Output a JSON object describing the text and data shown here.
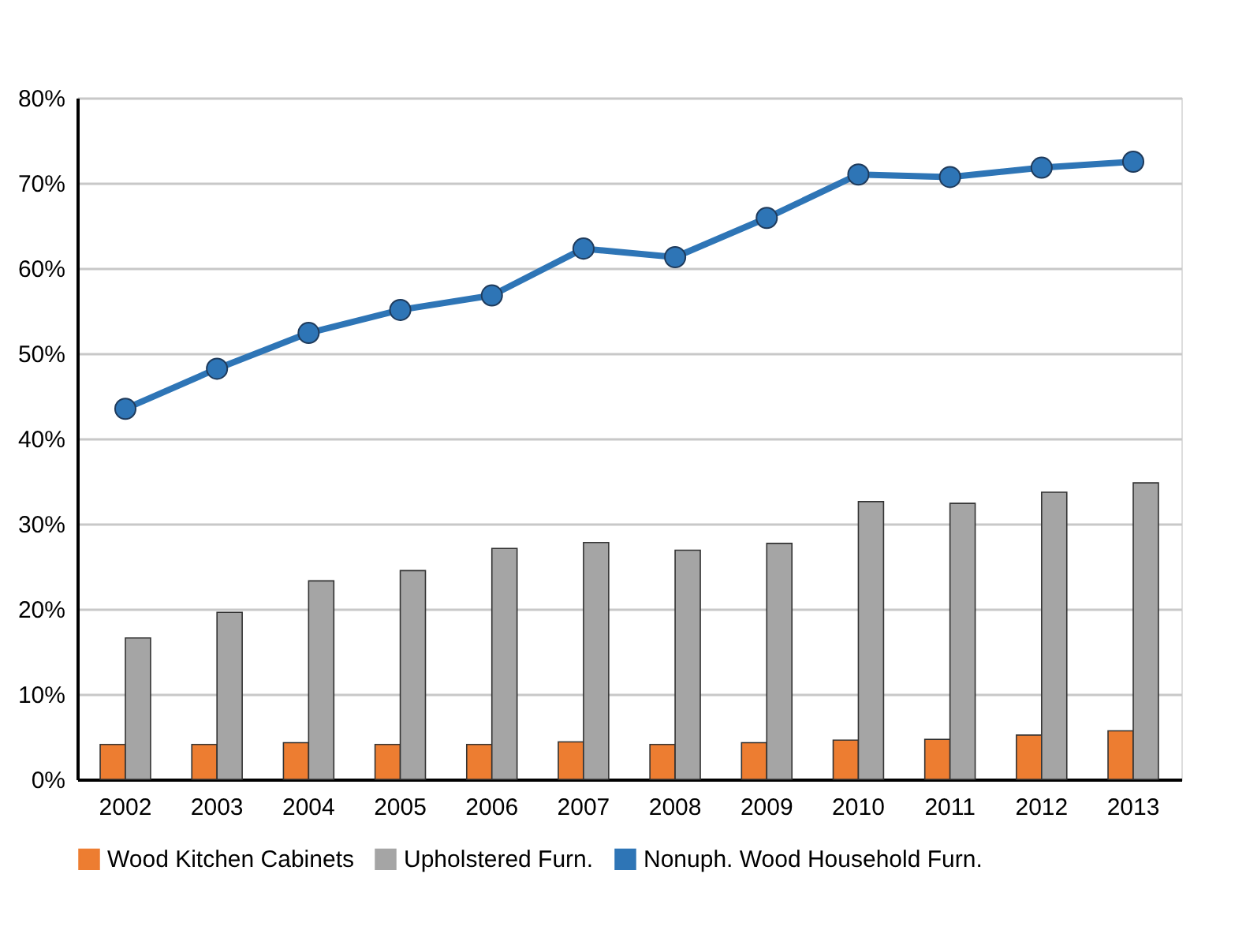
{
  "chart_data": {
    "type": "bar",
    "categories": [
      "2002",
      "2003",
      "2004",
      "2005",
      "2006",
      "2007",
      "2008",
      "2009",
      "2010",
      "2011",
      "2012",
      "2013"
    ],
    "series": [
      {
        "name": "Wood Kitchen Cabinets",
        "color": "#ed7d31",
        "values": [
          4.1,
          4.1,
          4.3,
          4.1,
          4.1,
          4.4,
          4.1,
          4.3,
          4.6,
          4.7,
          5.2,
          5.7
        ]
      },
      {
        "name": "Upholstered Furn.",
        "color": "#a5a5a5",
        "values": [
          16.6,
          19.6,
          23.3,
          24.5,
          27.1,
          27.8,
          26.9,
          27.7,
          32.6,
          32.4,
          33.7,
          34.8
        ]
      },
      {
        "name": "Nonuph. Wood Household Furn.",
        "color": "#2e75b6",
        "type": "line",
        "marker": "circle",
        "line_style": "solid",
        "values": [
          43.5,
          48.2,
          52.4,
          55.1,
          56.8,
          62.3,
          61.3,
          65.9,
          71.0,
          70.7,
          71.8,
          72.5
        ]
      }
    ],
    "ylim": [
      0,
      80
    ],
    "yticks": [
      {
        "value": 0,
        "label": "0%"
      },
      {
        "value": 10,
        "label": "10%"
      },
      {
        "value": 20,
        "label": "20%"
      },
      {
        "value": 30,
        "label": "30%"
      },
      {
        "value": 40,
        "label": "40%"
      },
      {
        "value": 50,
        "label": "50%"
      },
      {
        "value": 60,
        "label": "60%"
      },
      {
        "value": 70,
        "label": "70%"
      },
      {
        "value": 80,
        "label": "80%"
      }
    ],
    "grid": "y",
    "legend": "bottom"
  }
}
